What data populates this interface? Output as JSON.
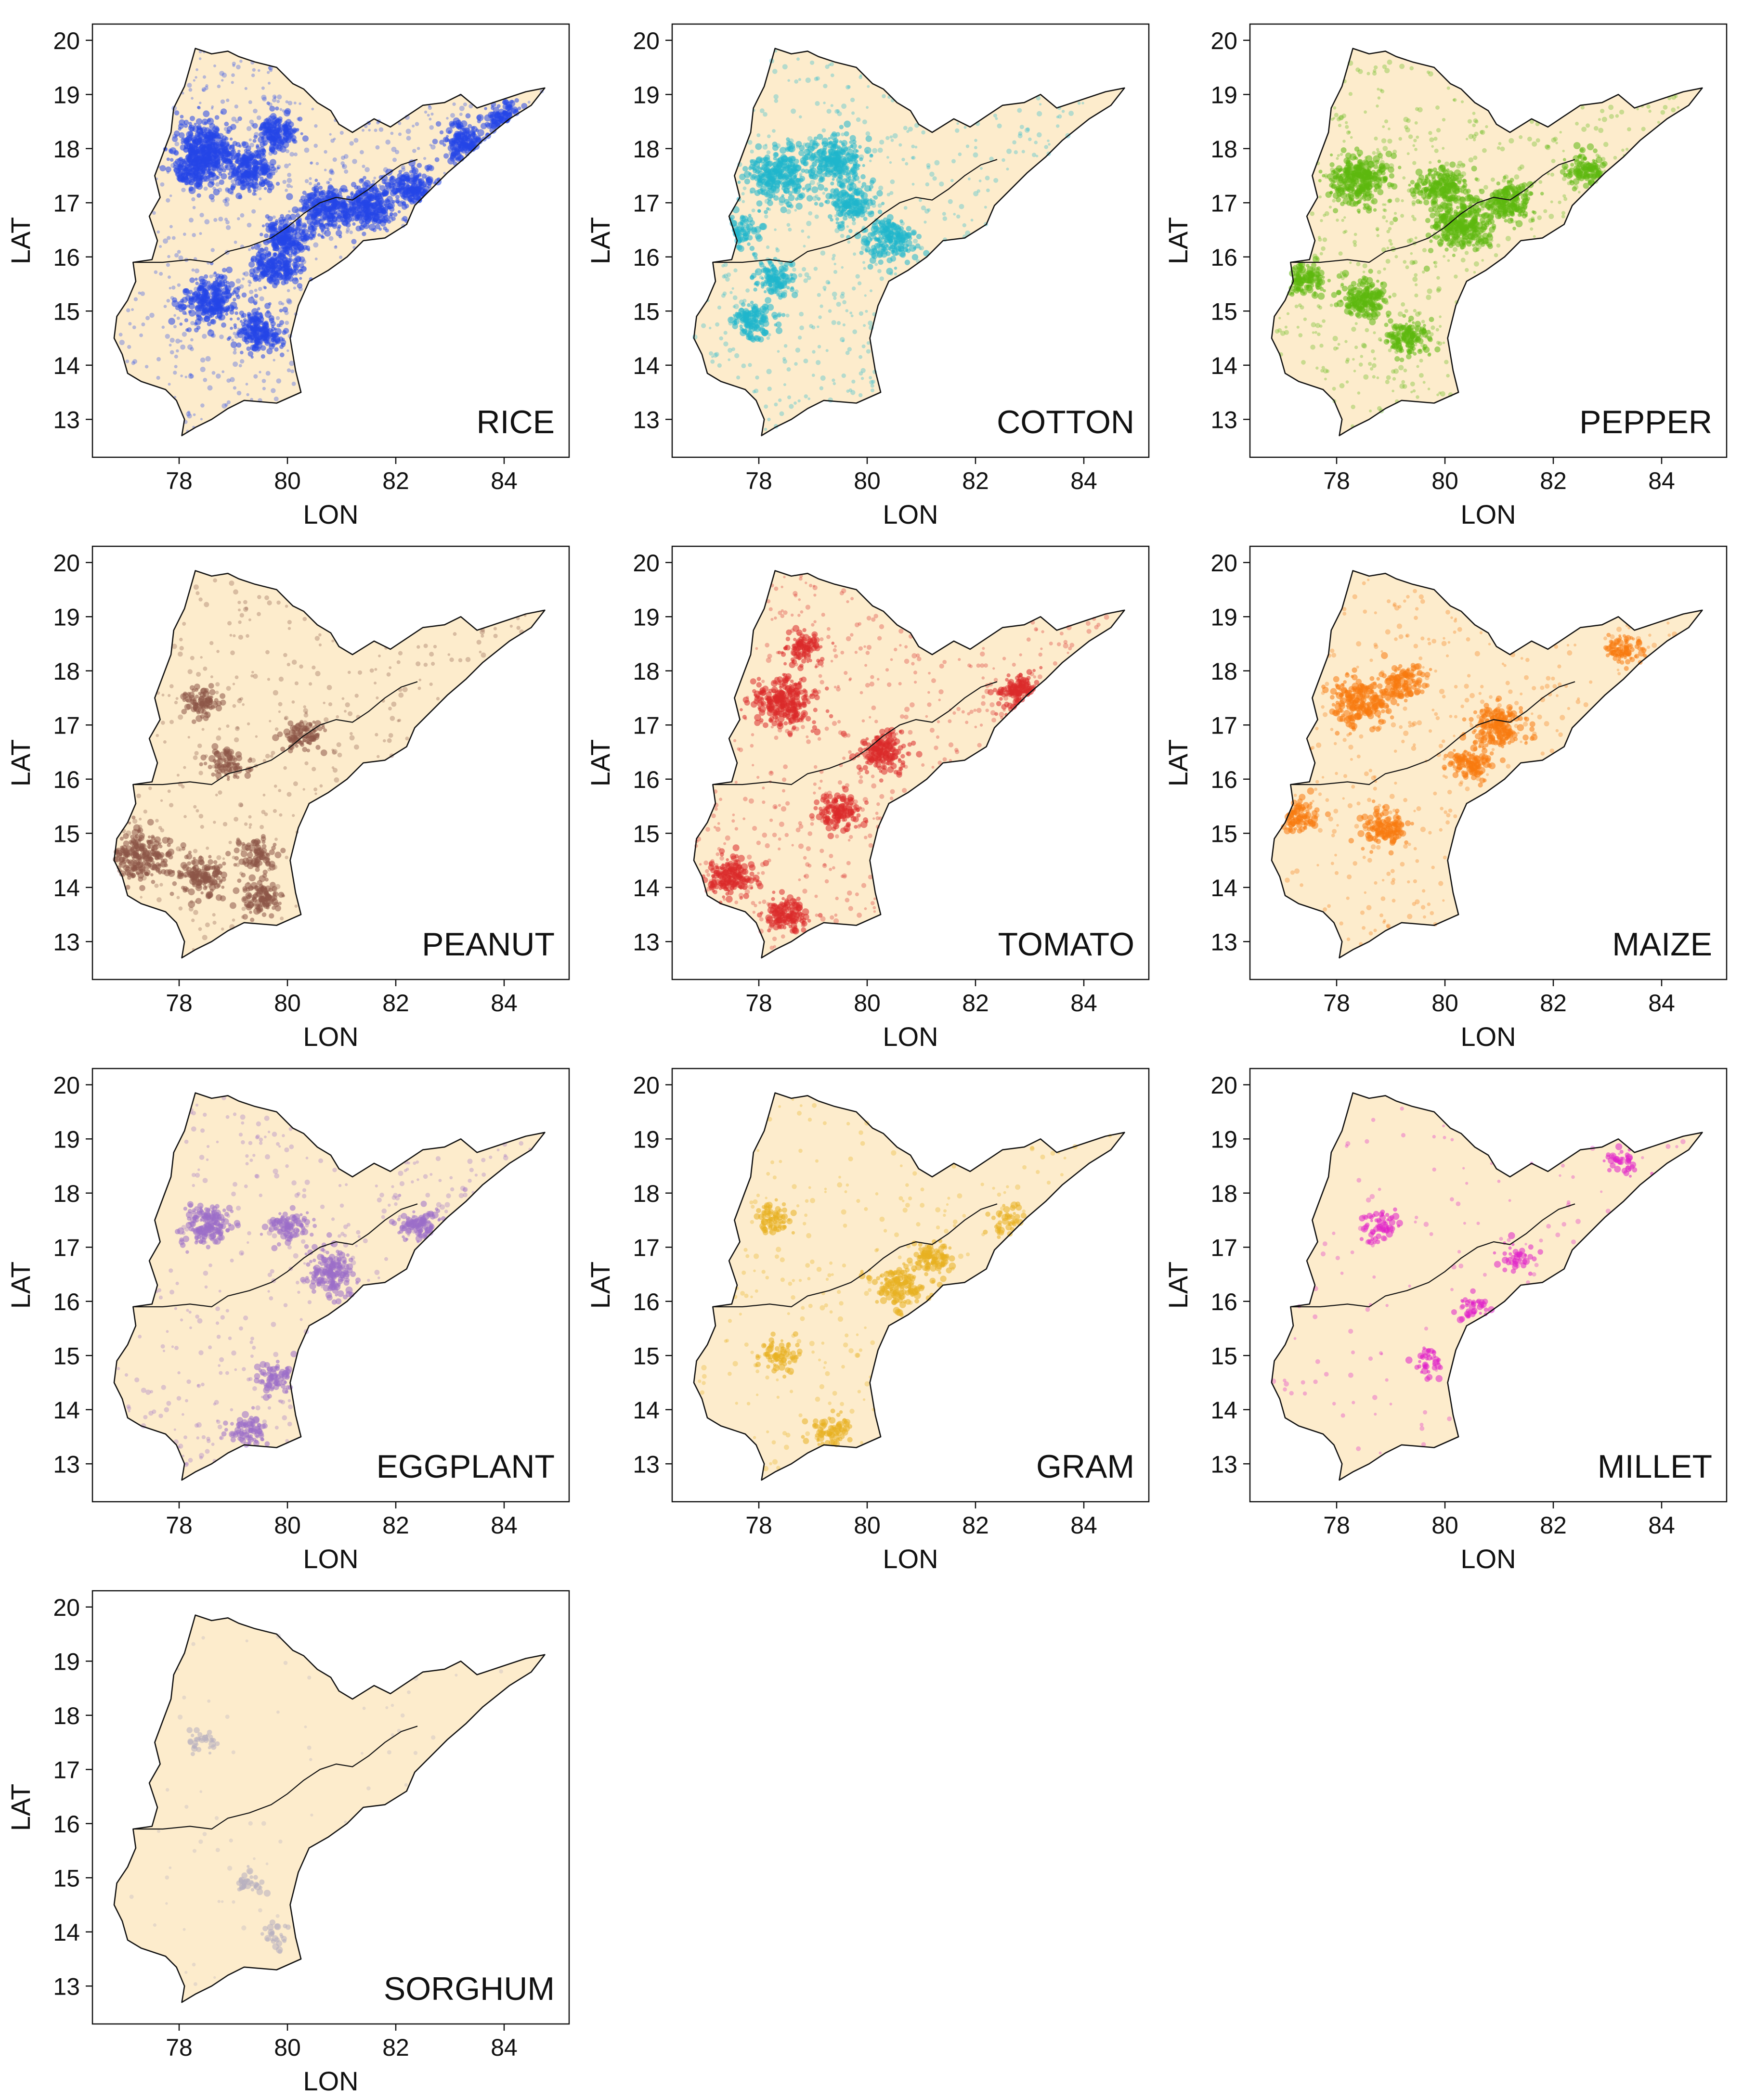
{
  "chart_data": {
    "type": "scatter",
    "layout": "4x3 grid of map panels (10 used)",
    "xlabel": "LON",
    "ylabel": "LAT",
    "xlim": [
      76.4,
      85.2
    ],
    "ylim": [
      12.3,
      20.3
    ],
    "xticks": [
      78,
      80,
      82,
      84
    ],
    "yticks": [
      13,
      14,
      15,
      16,
      17,
      18,
      19,
      20
    ],
    "grid": false,
    "land_color": "#fdeccc",
    "border_color": "#111111",
    "region_outline": [
      [
        78.3,
        19.85
      ],
      [
        78.6,
        19.75
      ],
      [
        78.9,
        19.8
      ],
      [
        79.1,
        19.7
      ],
      [
        79.4,
        19.6
      ],
      [
        79.8,
        19.5
      ],
      [
        80.1,
        19.2
      ],
      [
        80.3,
        19.1
      ],
      [
        80.55,
        18.85
      ],
      [
        80.8,
        18.7
      ],
      [
        80.95,
        18.45
      ],
      [
        81.2,
        18.3
      ],
      [
        81.6,
        18.55
      ],
      [
        81.9,
        18.4
      ],
      [
        82.2,
        18.6
      ],
      [
        82.5,
        18.8
      ],
      [
        82.9,
        18.85
      ],
      [
        83.2,
        19.0
      ],
      [
        83.5,
        18.75
      ],
      [
        83.8,
        18.85
      ],
      [
        84.1,
        18.95
      ],
      [
        84.4,
        19.05
      ],
      [
        84.75,
        19.12
      ],
      [
        84.5,
        18.8
      ],
      [
        84.1,
        18.55
      ],
      [
        83.6,
        18.15
      ],
      [
        83.3,
        17.85
      ],
      [
        82.95,
        17.55
      ],
      [
        82.6,
        17.2
      ],
      [
        82.35,
        16.95
      ],
      [
        82.2,
        16.6
      ],
      [
        81.8,
        16.35
      ],
      [
        81.4,
        16.3
      ],
      [
        81.1,
        16.0
      ],
      [
        80.75,
        15.75
      ],
      [
        80.4,
        15.55
      ],
      [
        80.2,
        15.1
      ],
      [
        80.05,
        14.5
      ],
      [
        80.15,
        13.9
      ],
      [
        80.25,
        13.5
      ],
      [
        79.8,
        13.3
      ],
      [
        79.2,
        13.35
      ],
      [
        78.9,
        13.2
      ],
      [
        78.6,
        13.0
      ],
      [
        78.3,
        12.85
      ],
      [
        78.05,
        12.7
      ],
      [
        78.1,
        13.0
      ],
      [
        77.95,
        13.35
      ],
      [
        77.75,
        13.55
      ],
      [
        77.3,
        13.7
      ],
      [
        77.05,
        13.85
      ],
      [
        76.95,
        14.2
      ],
      [
        76.8,
        14.5
      ],
      [
        76.85,
        14.9
      ],
      [
        77.05,
        15.2
      ],
      [
        77.2,
        15.55
      ],
      [
        77.15,
        15.9
      ],
      [
        77.5,
        15.95
      ],
      [
        77.6,
        16.3
      ],
      [
        77.45,
        16.75
      ],
      [
        77.65,
        17.1
      ],
      [
        77.55,
        17.5
      ],
      [
        77.7,
        17.9
      ],
      [
        77.85,
        18.3
      ],
      [
        77.9,
        18.75
      ],
      [
        78.1,
        19.15
      ],
      [
        78.2,
        19.5
      ]
    ],
    "state_boundary": [
      [
        77.15,
        15.9
      ],
      [
        77.7,
        15.9
      ],
      [
        78.2,
        15.95
      ],
      [
        78.6,
        15.9
      ],
      [
        78.9,
        16.1
      ],
      [
        79.3,
        16.2
      ],
      [
        79.7,
        16.35
      ],
      [
        80.0,
        16.55
      ],
      [
        80.3,
        16.8
      ],
      [
        80.6,
        17.0
      ],
      [
        80.9,
        17.1
      ],
      [
        81.2,
        17.05
      ],
      [
        81.5,
        17.25
      ],
      [
        81.8,
        17.5
      ],
      [
        82.1,
        17.7
      ],
      [
        82.4,
        17.8
      ]
    ],
    "panels": [
      {
        "crop": "RICE",
        "color": "#2446e8",
        "density": 1.0,
        "hotspots": [
          [
            78.5,
            18.0,
            0.9
          ],
          [
            78.3,
            17.6,
            0.4
          ],
          [
            79.3,
            17.6,
            0.6
          ],
          [
            79.8,
            18.3,
            0.4
          ],
          [
            80.7,
            16.9,
            0.6
          ],
          [
            81.5,
            16.9,
            0.7
          ],
          [
            82.3,
            17.3,
            0.5
          ],
          [
            83.3,
            18.1,
            0.55
          ],
          [
            84.0,
            18.6,
            0.3
          ],
          [
            78.6,
            15.2,
            0.7
          ],
          [
            79.5,
            14.6,
            0.5
          ],
          [
            79.8,
            15.8,
            0.5
          ],
          [
            80.0,
            16.4,
            0.5
          ]
        ]
      },
      {
        "crop": "COTTON",
        "color": "#1fb7cc",
        "density": 0.75,
        "hotspots": [
          [
            78.4,
            17.5,
            0.9
          ],
          [
            79.4,
            17.8,
            0.7
          ],
          [
            77.5,
            16.4,
            0.5
          ],
          [
            80.4,
            16.3,
            0.6
          ],
          [
            79.7,
            17.0,
            0.5
          ],
          [
            77.9,
            14.8,
            0.4
          ],
          [
            78.3,
            15.6,
            0.4
          ]
        ]
      },
      {
        "crop": "PEPPER",
        "color": "#5cb80e",
        "density": 0.9,
        "hotspots": [
          [
            78.4,
            17.4,
            0.8
          ],
          [
            80.3,
            16.6,
            0.8
          ],
          [
            79.9,
            17.3,
            0.5
          ],
          [
            81.2,
            17.0,
            0.5
          ],
          [
            78.5,
            15.2,
            0.5
          ],
          [
            79.3,
            14.5,
            0.4
          ],
          [
            82.6,
            17.6,
            0.3
          ],
          [
            77.4,
            15.6,
            0.4
          ]
        ]
      },
      {
        "crop": "PEANUT",
        "color": "#8c5647",
        "density": 0.55,
        "hotspots": [
          [
            77.3,
            14.6,
            0.8
          ],
          [
            78.4,
            14.2,
            0.5
          ],
          [
            78.4,
            17.4,
            0.3
          ],
          [
            80.3,
            16.8,
            0.3
          ],
          [
            79.5,
            13.8,
            0.4
          ],
          [
            79.4,
            14.6,
            0.3
          ],
          [
            78.9,
            16.3,
            0.3
          ]
        ]
      },
      {
        "crop": "TOMATO",
        "color": "#da2a2a",
        "density": 0.8,
        "hotspots": [
          [
            78.45,
            17.45,
            0.8
          ],
          [
            77.5,
            14.2,
            0.5
          ],
          [
            78.5,
            13.5,
            0.4
          ],
          [
            80.3,
            16.5,
            0.5
          ],
          [
            82.8,
            17.6,
            0.4
          ],
          [
            79.5,
            15.4,
            0.4
          ],
          [
            78.8,
            18.4,
            0.3
          ]
        ]
      },
      {
        "crop": "MAIZE",
        "color": "#f77a0f",
        "density": 0.6,
        "hotspots": [
          [
            78.4,
            17.4,
            0.7
          ],
          [
            81.0,
            17.0,
            0.6
          ],
          [
            80.5,
            16.3,
            0.4
          ],
          [
            79.2,
            17.8,
            0.4
          ],
          [
            83.3,
            18.4,
            0.3
          ],
          [
            78.9,
            15.1,
            0.4
          ],
          [
            77.3,
            15.3,
            0.3
          ]
        ]
      },
      {
        "crop": "EGGPLANT",
        "color": "#9a6ec8",
        "density": 0.55,
        "hotspots": [
          [
            78.5,
            17.4,
            0.6
          ],
          [
            80.8,
            16.5,
            0.6
          ],
          [
            82.4,
            17.4,
            0.4
          ],
          [
            79.8,
            14.6,
            0.3
          ],
          [
            79.3,
            13.6,
            0.3
          ],
          [
            80.0,
            17.4,
            0.3
          ]
        ]
      },
      {
        "crop": "GRAM",
        "color": "#e8b020",
        "density": 0.4,
        "hotspots": [
          [
            80.6,
            16.3,
            0.6
          ],
          [
            81.2,
            16.8,
            0.4
          ],
          [
            78.3,
            17.5,
            0.3
          ],
          [
            78.4,
            15.0,
            0.3
          ],
          [
            79.3,
            13.6,
            0.3
          ],
          [
            82.6,
            17.5,
            0.2
          ]
        ]
      },
      {
        "crop": "MILLET",
        "color": "#e020c8",
        "density": 0.22,
        "hotspots": [
          [
            78.8,
            17.4,
            0.3
          ],
          [
            83.3,
            18.6,
            0.2
          ],
          [
            80.5,
            15.9,
            0.2
          ],
          [
            79.7,
            14.9,
            0.2
          ],
          [
            81.3,
            16.8,
            0.2
          ]
        ]
      },
      {
        "crop": "SORGHUM",
        "color": "#b6aec0",
        "density": 0.12,
        "hotspots": [
          [
            78.4,
            17.5,
            0.2
          ],
          [
            79.3,
            14.9,
            0.2
          ],
          [
            79.8,
            13.9,
            0.15
          ]
        ]
      }
    ]
  }
}
